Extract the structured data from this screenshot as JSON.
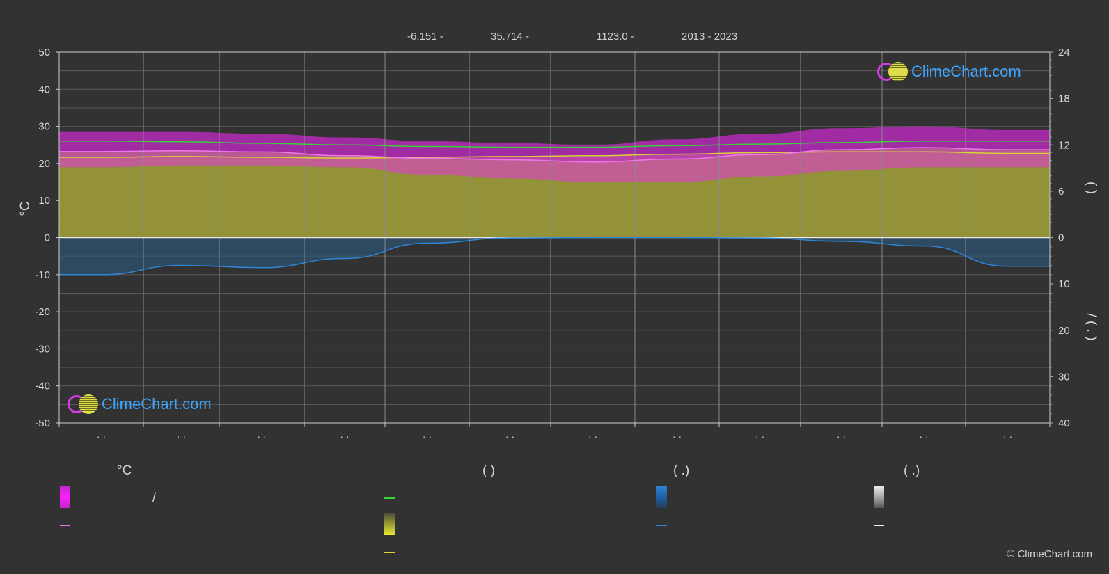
{
  "header": {
    "lat": "-6.151 -",
    "lon": "35.714 -",
    "elev": "1123.0 -",
    "years": "2013 - 2023"
  },
  "chart_data": {
    "type": "area",
    "left_axis": {
      "label": "°C",
      "ylim": [
        -50,
        50
      ],
      "ticks": [
        50,
        40,
        30,
        20,
        10,
        0,
        -10,
        -20,
        -30,
        -40,
        -50
      ]
    },
    "right_axis_top": {
      "ticks": [
        24,
        18,
        12,
        6,
        0
      ],
      "label": "(    )"
    },
    "right_axis_bottom": {
      "ticks": [
        0,
        10,
        20,
        30,
        40
      ],
      "label": "/    (  .  )"
    },
    "x_tick_labels": [
      "· ·",
      "· ·",
      "· ·",
      "· ·",
      "· ·",
      "· ·",
      "· ·",
      "· ·",
      "· ·",
      "· ·",
      "· ·",
      "· ·"
    ],
    "months": 12,
    "grid": true,
    "series": [
      {
        "key": "daylight",
        "values": [
          12.5,
          12.4,
          12.2,
          12.0,
          11.8,
          11.7,
          11.7,
          11.9,
          12.1,
          12.3,
          12.5,
          12.5
        ],
        "unit": "h",
        "axis": "right_top"
      },
      {
        "key": "sunshine",
        "values": [
          10.4,
          10.5,
          10.4,
          10.3,
          10.4,
          10.5,
          10.6,
          10.8,
          11.0,
          11.1,
          11.1,
          10.9
        ],
        "unit": "h",
        "axis": "right_top"
      },
      {
        "key": "temp_mean",
        "values": [
          23.2,
          23.4,
          23.1,
          22.1,
          21.4,
          21.0,
          20.4,
          21.2,
          22.4,
          23.7,
          24.3,
          23.7
        ],
        "unit": "°C",
        "axis": "left"
      },
      {
        "key": "precip",
        "values": [
          8.0,
          6.0,
          6.5,
          4.5,
          1.2,
          0.1,
          0.0,
          0.0,
          0.1,
          0.8,
          1.8,
          6.2
        ],
        "unit": "mm",
        "axis": "right_bottom"
      }
    ],
    "bands": [
      {
        "key": "temp_range",
        "upper": [
          28.5,
          28.5,
          28.0,
          27.0,
          26.0,
          25.5,
          25.0,
          26.5,
          28.0,
          29.5,
          30.0,
          29.0
        ],
        "lower": [
          19.0,
          19.5,
          19.5,
          19.0,
          17.0,
          16.0,
          15.0,
          15.0,
          16.5,
          18.0,
          19.0,
          19.0
        ],
        "color": "#c026c8"
      }
    ],
    "colors": {
      "daylight": "#3ad23a",
      "sunshine_line": "#d8d23a",
      "sunshine_fill": "#a5a33a",
      "temp_line": "#ee77ee",
      "temp_band": "#c72ac9",
      "temp_band_lower": "#c56b8f",
      "precip": "#2f86d6",
      "precip_fill": "#2c5a80"
    }
  },
  "legend": {
    "col1_title": "°C",
    "col2_title": "(          )",
    "col3_title": "(   .)",
    "col4_title": "(   .)",
    "col1_item1": "/"
  },
  "logo_text": "ClimeChart.com",
  "copyright": "© ClimeChart.com"
}
